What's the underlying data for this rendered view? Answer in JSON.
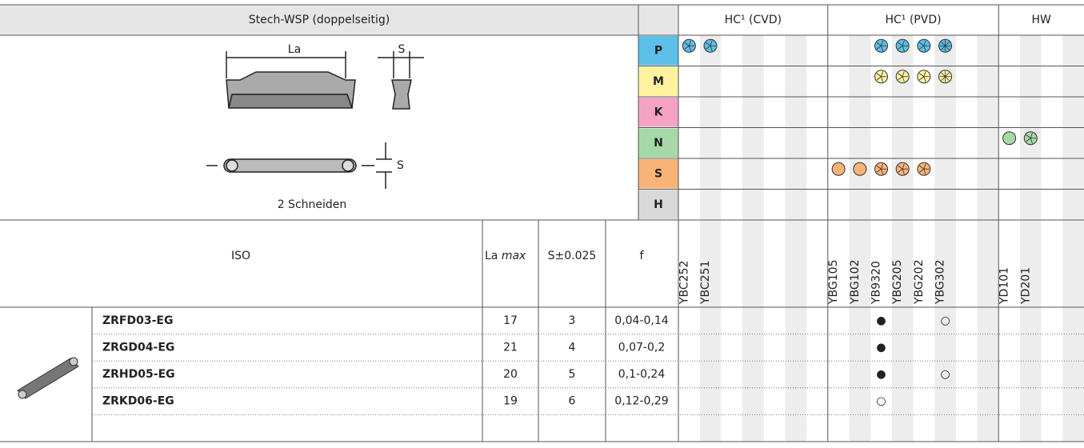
{
  "header": {
    "title": "Stech-WSP (doppelseitig)",
    "groups": [
      "HC¹ (CVD)",
      "HC¹ (PVD)",
      "HW"
    ]
  },
  "figure": {
    "la": "La",
    "s_top": "S",
    "s_side": "S",
    "caption": "2 Schneiden"
  },
  "materials": [
    "P",
    "M",
    "K",
    "N",
    "S",
    "H"
  ],
  "columns": {
    "iso": "ISO",
    "la": "La",
    "la_max": "max",
    "s": "S±0.025",
    "f": "f"
  },
  "grades": [
    "YBC252",
    "YBC251",
    null,
    null,
    null,
    null,
    null,
    "YBG105",
    "YBG102",
    "YB9320",
    "YBG205",
    "YBG202",
    "YBG302",
    null,
    null,
    "YD101",
    "YD201",
    null,
    null
  ],
  "rows": [
    {
      "code": "ZRFD03-EG",
      "la": "17",
      "s": "3",
      "f": "0,04-0,14",
      "marks": [
        null,
        null,
        null,
        null,
        null,
        null,
        null,
        null,
        null,
        "●",
        null,
        null,
        "○",
        null,
        null,
        null,
        null,
        null,
        null
      ]
    },
    {
      "code": "ZRGD04-EG",
      "la": "21",
      "s": "4",
      "f": "0,07-0,2",
      "marks": [
        null,
        null,
        null,
        null,
        null,
        null,
        null,
        null,
        null,
        "●",
        null,
        null,
        null,
        null,
        null,
        null,
        null,
        null,
        null
      ]
    },
    {
      "code": "ZRHD05-EG",
      "la": "20",
      "s": "5",
      "f": "0,1-0,24",
      "marks": [
        null,
        null,
        null,
        null,
        null,
        null,
        null,
        null,
        null,
        "●",
        null,
        null,
        "○",
        null,
        null,
        null,
        null,
        null,
        null
      ]
    },
    {
      "code": "ZRKD06-EG",
      "la": "19",
      "s": "6",
      "f": "0,12-0,29",
      "marks": [
        null,
        null,
        null,
        null,
        null,
        null,
        null,
        null,
        null,
        "○",
        null,
        null,
        null,
        null,
        null,
        null,
        null,
        null,
        null
      ]
    }
  ]
}
